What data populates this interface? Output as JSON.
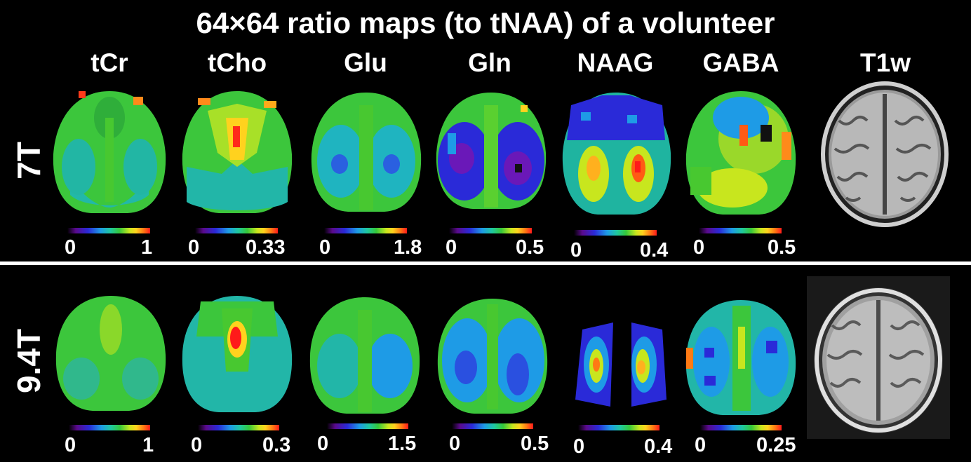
{
  "title": "64×64 ratio maps (to tNAA) of a volunteer",
  "columns": [
    "tCr",
    "tCho",
    "Glu",
    "Gln",
    "NAAG",
    "GABA",
    "T1w"
  ],
  "rows": [
    "7T",
    "9.4T"
  ],
  "scales": {
    "r7T": [
      {
        "min": "0",
        "max": "1"
      },
      {
        "min": "0",
        "max": "0.33"
      },
      {
        "min": "0",
        "max": "1.8"
      },
      {
        "min": "0",
        "max": "0.5"
      },
      {
        "min": "0",
        "max": "0.4"
      },
      {
        "min": "0",
        "max": "0.5"
      }
    ],
    "r94T": [
      {
        "min": "0",
        "max": "1"
      },
      {
        "min": "0",
        "max": "0.3"
      },
      {
        "min": "0",
        "max": "1.5"
      },
      {
        "min": "0",
        "max": "0.5"
      },
      {
        "min": "0",
        "max": "0.4"
      },
      {
        "min": "0",
        "max": "0.25"
      }
    ]
  },
  "colors": {
    "background": "#000000",
    "text": "#ffffff",
    "map_low": "#2a2ad8",
    "map_mid": "#35c83a",
    "map_teal": "#1fb4a0",
    "map_high": "#ffd21e",
    "map_peak": "#ff1a1a"
  }
}
